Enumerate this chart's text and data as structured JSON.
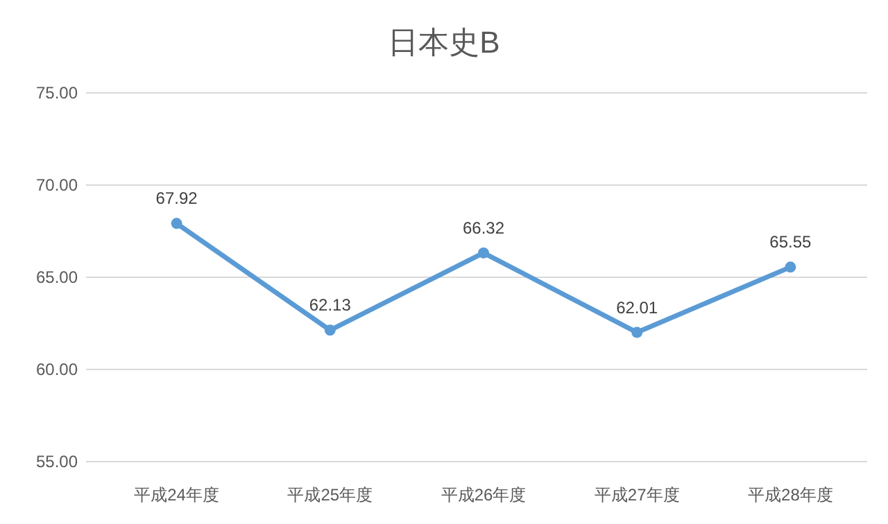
{
  "chart_data": {
    "type": "line",
    "title": "日本史B",
    "categories": [
      "平成24年度",
      "平成25年度",
      "平成26年度",
      "平成27年度",
      "平成28年度"
    ],
    "series": [
      {
        "color": "#5b9bd5",
        "values": [
          67.92,
          62.13,
          66.32,
          62.01,
          65.55
        ]
      }
    ],
    "ylim": [
      55,
      75
    ],
    "yticks": [
      {
        "value": 55,
        "label": "55.00"
      },
      {
        "value": 60,
        "label": "60.00"
      },
      {
        "value": 65,
        "label": "65.00"
      },
      {
        "value": 70,
        "label": "70.00"
      },
      {
        "value": 75,
        "label": "75.00"
      }
    ],
    "grid": "y",
    "marker": "circle",
    "line_style": "solid",
    "data_labels": true
  }
}
